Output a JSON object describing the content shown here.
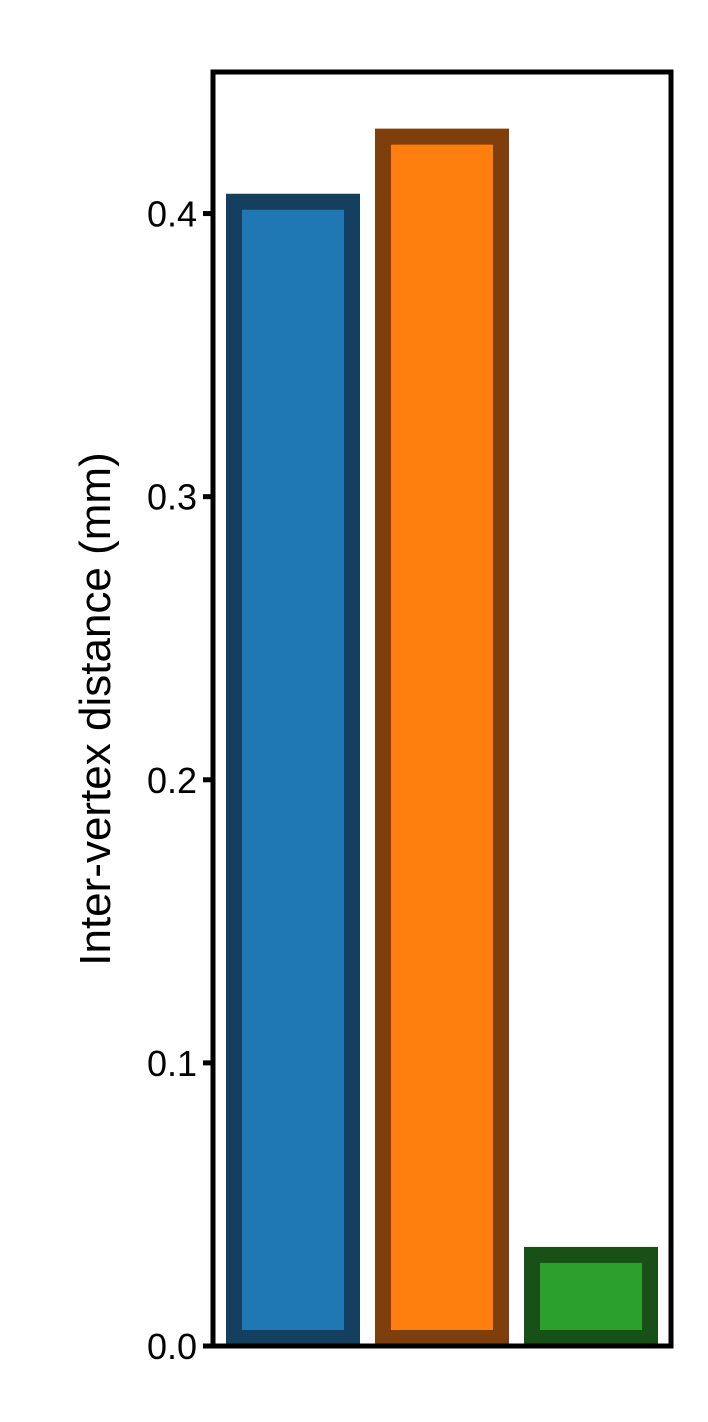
{
  "chart_data": {
    "type": "bar",
    "title": "",
    "xlabel": "",
    "ylabel": "Inter-vertex distance (mm)",
    "ylim": [
      0.0,
      0.45
    ],
    "yticks": [
      0.0,
      0.1,
      0.2,
      0.3,
      0.4
    ],
    "ytick_labels": [
      "0.0",
      "0.1",
      "0.2",
      "0.3",
      "0.4"
    ],
    "categories": [
      "",
      "",
      ""
    ],
    "values": [
      0.407,
      0.43,
      0.035
    ],
    "colors": {
      "fill": [
        "#1f77b4",
        "#ff7f0e",
        "#2ca02c"
      ],
      "edge": [
        "#143f5e",
        "#7f3f0c",
        "#195018"
      ]
    },
    "grid": false,
    "legend": "none"
  }
}
